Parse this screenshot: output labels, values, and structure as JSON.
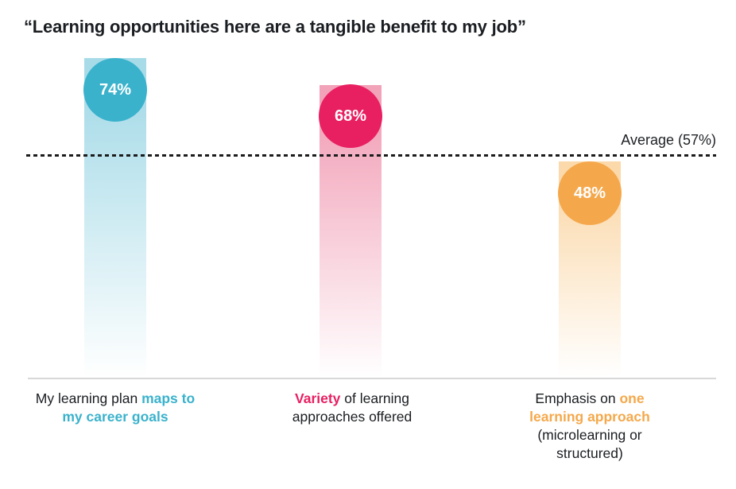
{
  "title": "“Learning opportunities here are a tangible benefit to my job”",
  "average": {
    "label": "Average (57%)",
    "value": 57
  },
  "colors": {
    "teal": "#3ab2cc",
    "teal_light": "#a7dbe8",
    "pink": "#e81f61",
    "pink_light": "#f2a2b9",
    "orange": "#f5a84b",
    "orange_light": "#fbd9ab",
    "dash_line": "#1b1b1b",
    "axis_line": "#d8d8d8",
    "text": "#1a1d21",
    "value_text": "#ffffff"
  },
  "bars": [
    {
      "value": 74,
      "value_label": "74%",
      "color": "#3ab2cc",
      "light_color": "#a7dbe8",
      "label_lines": [
        [
          {
            "text": "My learning plan ",
            "accent": false
          },
          {
            "text": "maps to",
            "accent": true
          }
        ],
        [
          {
            "text": "my career goals",
            "accent": true
          }
        ]
      ]
    },
    {
      "value": 68,
      "value_label": "68%",
      "color": "#e81f61",
      "light_color": "#f2a2b9",
      "label_lines": [
        [
          {
            "text": "Variety",
            "accent": true
          },
          {
            "text": " of learning",
            "accent": false
          }
        ],
        [
          {
            "text": "approaches offered",
            "accent": false
          }
        ]
      ]
    },
    {
      "value": 48,
      "value_label": "48%",
      "color": "#f5a84b",
      "light_color": "#fbd9ab",
      "label_lines": [
        [
          {
            "text": "Emphasis on ",
            "accent": false
          },
          {
            "text": "one",
            "accent": true
          }
        ],
        [
          {
            "text": "learning approach",
            "accent": true
          }
        ],
        [
          {
            "text": "(microlearning or",
            "accent": false
          }
        ],
        [
          {
            "text": "structured)",
            "accent": false
          }
        ]
      ]
    }
  ],
  "chart_data": {
    "type": "bar",
    "title": "“Learning opportunities here are a tangible benefit to my job”",
    "categories": [
      "My learning plan maps to my career goals",
      "Variety of learning approaches offered",
      "Emphasis on one learning approach (microlearning or structured)"
    ],
    "values": [
      74,
      68,
      48
    ],
    "value_suffix": "%",
    "average_line": {
      "label": "Average (57%)",
      "value": 57
    },
    "xlabel": "",
    "ylabel": "",
    "ylim": [
      0,
      100
    ],
    "grid": false,
    "legend": false,
    "orientation": "vertical",
    "bar_style": "gradient-lollipop"
  }
}
